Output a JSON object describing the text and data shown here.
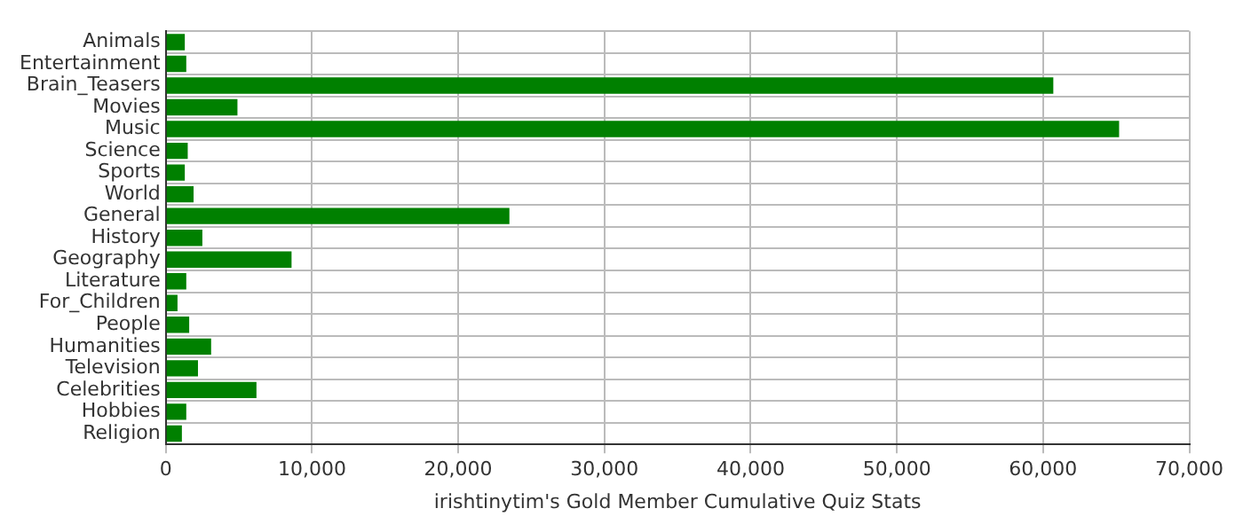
{
  "chart_data": {
    "type": "bar",
    "orientation": "horizontal",
    "xlabel": "irishtinytim's Gold Member Cumulative Quiz Stats",
    "categories": [
      "Animals",
      "Entertainment",
      "Brain_Teasers",
      "Movies",
      "Music",
      "Science",
      "Sports",
      "World",
      "General",
      "History",
      "Geography",
      "Literature",
      "For_Children",
      "People",
      "Humanities",
      "Television",
      "Celebrities",
      "Hobbies",
      "Religion"
    ],
    "values": [
      1300,
      1400,
      60700,
      4900,
      65200,
      1500,
      1300,
      1900,
      23500,
      2500,
      8600,
      1400,
      800,
      1600,
      3100,
      2200,
      6200,
      1400,
      1100
    ],
    "color": "#008000",
    "xlim": [
      0,
      70000
    ],
    "xticks": [
      {
        "value": 0,
        "label": "0"
      },
      {
        "value": 10000,
        "label": "10,000"
      },
      {
        "value": 20000,
        "label": "20,000"
      },
      {
        "value": 30000,
        "label": "30,000"
      },
      {
        "value": 40000,
        "label": "40,000"
      },
      {
        "value": 50000,
        "label": "50,000"
      },
      {
        "value": 60000,
        "label": "60,000"
      },
      {
        "value": 70000,
        "label": "70,000"
      }
    ],
    "grid": true
  }
}
